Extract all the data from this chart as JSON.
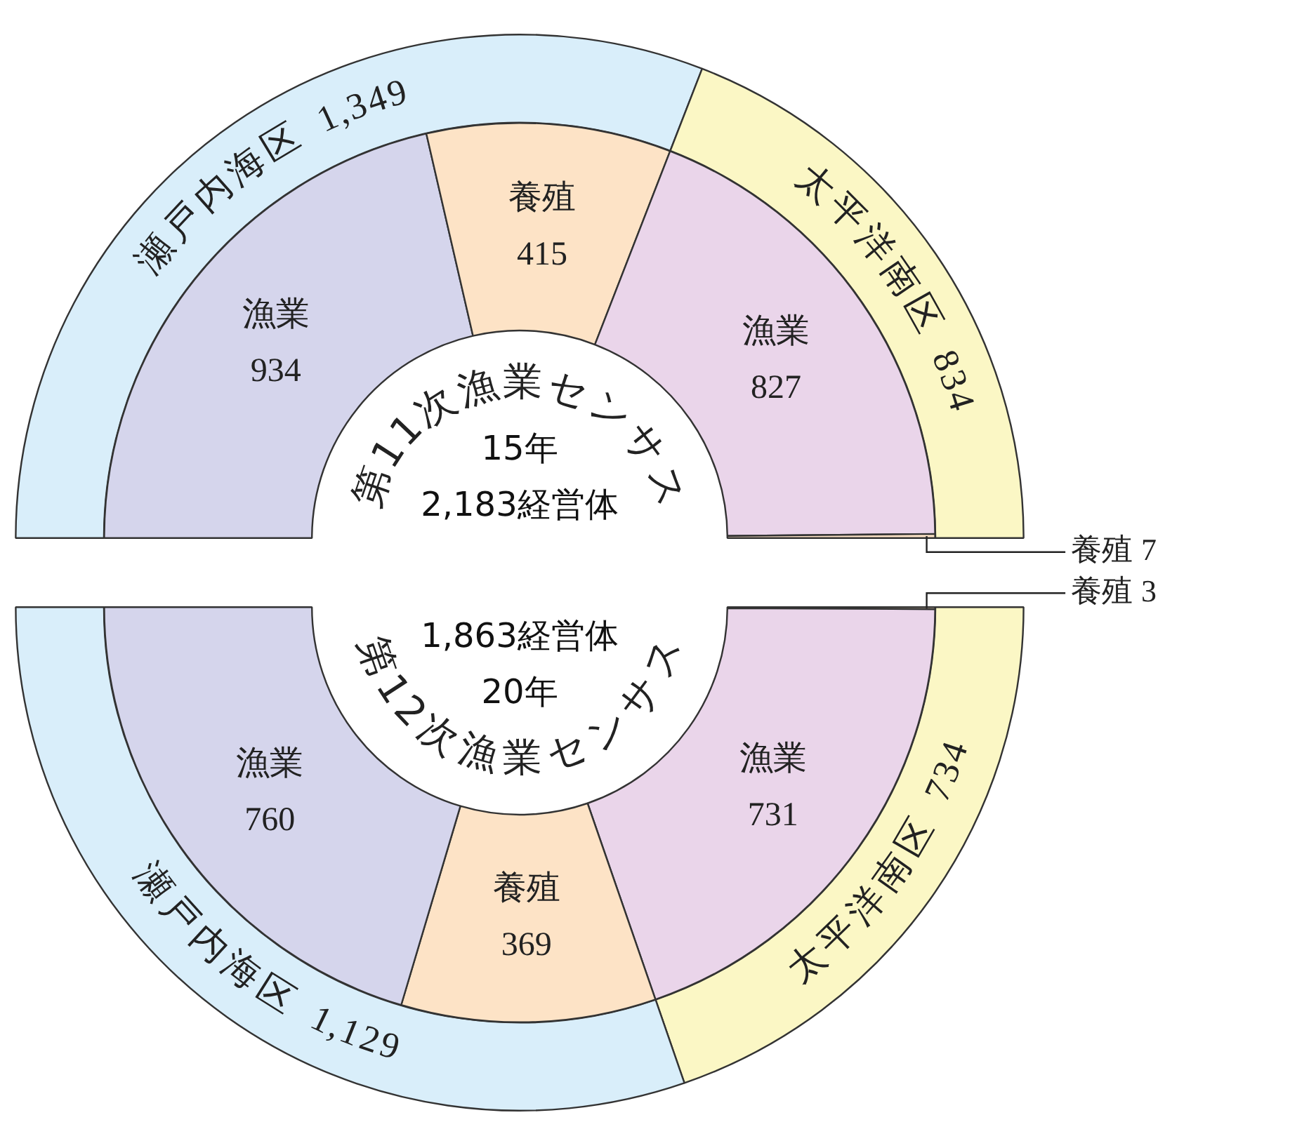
{
  "chart_data": [
    {
      "type": "donut",
      "categories": [
        "瀬戸内海区",
        "太平洋南区"
      ],
      "values": [
        1349,
        834
      ],
      "colors": [
        "#d9eefa",
        "#fbf7c5"
      ],
      "value_labels": [
        "1,349",
        "834"
      ]
    },
    {
      "type": "donut",
      "title": "第11次漁業センサス",
      "subtitle": "15年",
      "annotations": [
        "2,183経営体"
      ],
      "categories": [
        "漁業",
        "養殖",
        "漁業",
        "養殖"
      ],
      "values": [
        934,
        415,
        827,
        7
      ],
      "colors": [
        "#d5d5ec",
        "#fde3c6",
        "#ead5ea",
        "#fde3c6"
      ],
      "value_labels": [
        "934",
        "415",
        "827",
        "7"
      ]
    },
    {
      "type": "donut",
      "categories": [
        "太平洋南区",
        "瀬戸内海区"
      ],
      "values": [
        734,
        1129
      ],
      "colors": [
        "#fbf7c5",
        "#d9eefa"
      ],
      "value_labels": [
        "734",
        "1,129"
      ]
    },
    {
      "type": "donut",
      "title": "第12次漁業センサス",
      "subtitle": "20年",
      "annotations": [
        "1,863経営体"
      ],
      "categories": [
        "養殖",
        "漁業",
        "養殖",
        "漁業"
      ],
      "values": [
        3,
        731,
        369,
        760
      ],
      "colors": [
        "#fde3c6",
        "#ead5ea",
        "#fde3c6",
        "#d5d5ec"
      ],
      "value_labels": [
        "3",
        "731",
        "369",
        "760"
      ]
    }
  ]
}
